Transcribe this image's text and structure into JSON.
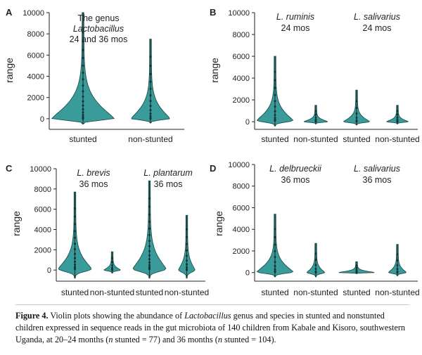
{
  "figure": {
    "caption_label": "Figure 4.",
    "caption_part1": "Violin plots showing the abundance of ",
    "caption_genus": "Lactobacillus",
    "caption_part2": " genus and species in stunted and nonstunted children expressed in sequence reads in the gut microbiota of 140 children from Kabale and Kisoro, southwestern Uganda, at 20–24 months (",
    "caption_n1": "n",
    "caption_part3": " stunted = 77) and 36 months (",
    "caption_n2": "n",
    "caption_part4": " stunted = 104)."
  },
  "colors": {
    "violin_fill": "#3a9c9a",
    "violin_stroke": "#1e4f4e",
    "axis": "#222222"
  },
  "chart_data": [
    {
      "panel": "A",
      "type": "violin",
      "ylabel": "range",
      "ylim": [
        -1000,
        10000
      ],
      "yticks": [
        0,
        2000,
        4000,
        6000,
        8000,
        10000
      ],
      "title_lines": [
        {
          "text": "The genus",
          "italic": false
        },
        {
          "text": "Lactobacillus",
          "italic": true
        },
        {
          "text": "24 and 36 mos",
          "italic": false
        }
      ],
      "categories": [
        "stunted",
        "non-stunted"
      ],
      "violins": [
        {
          "name": "stunted",
          "min": -500,
          "max": 10000,
          "peak": 0,
          "width": 0.9
        },
        {
          "name": "non-stunted",
          "min": -400,
          "max": 7500,
          "peak": 0,
          "width": 0.55
        }
      ]
    },
    {
      "panel": "B",
      "type": "violin",
      "ylabel": "range",
      "ylim": [
        -700,
        10000
      ],
      "yticks": [
        0,
        2000,
        4000,
        6000,
        8000,
        10000
      ],
      "titles": [
        {
          "species": "L. ruminis",
          "age": "24 mos"
        },
        {
          "species": "L. salivarius",
          "age": "24 mos"
        }
      ],
      "categories": [
        "stunted",
        "non-stunted",
        "stunted",
        "non-stunted"
      ],
      "violins": [
        {
          "name": "stunted",
          "min": -400,
          "max": 6000,
          "peak": 100,
          "width": 0.85
        },
        {
          "name": "non-stunted",
          "min": -200,
          "max": 1500,
          "peak": 0,
          "width": 0.55
        },
        {
          "name": "stunted",
          "min": -300,
          "max": 2900,
          "peak": 0,
          "width": 0.6
        },
        {
          "name": "non-stunted",
          "min": -200,
          "max": 1500,
          "peak": 0,
          "width": 0.5
        }
      ]
    },
    {
      "panel": "C",
      "type": "violin",
      "ylabel": "range",
      "ylim": [
        -1100,
        10000
      ],
      "yticks": [
        0,
        2000,
        4000,
        6000,
        8000,
        10000
      ],
      "titles": [
        {
          "species": "L.  brevis",
          "age": "36 mos"
        },
        {
          "species": "L. plantarum",
          "age": "36 mos"
        }
      ],
      "categories": [
        "stunted",
        "non-stunted",
        "stunted",
        "non-stunted"
      ],
      "violins": [
        {
          "name": "stunted",
          "min": -800,
          "max": 7700,
          "peak": 100,
          "width": 0.85
        },
        {
          "name": "non-stunted",
          "min": -300,
          "max": 1800,
          "peak": 0,
          "width": 0.4
        },
        {
          "name": "stunted",
          "min": -800,
          "max": 8800,
          "peak": 100,
          "width": 0.85
        },
        {
          "name": "non-stunted",
          "min": -800,
          "max": 5400,
          "peak": 0,
          "width": 0.4
        }
      ]
    },
    {
      "panel": "D",
      "type": "violin",
      "ylabel": "range",
      "ylim": [
        -800,
        10000
      ],
      "yticks": [
        0,
        2000,
        4000,
        6000,
        8000,
        10000
      ],
      "titles": [
        {
          "species": "L. delbrueckii",
          "age": "36 mos"
        },
        {
          "species": "L. salivarius",
          "age": "36 mos"
        }
      ],
      "categories": [
        "stunted",
        "non-stunted",
        "stunted",
        "non-stunted"
      ],
      "violins": [
        {
          "name": "stunted",
          "min": -400,
          "max": 5400,
          "peak": 50,
          "width": 0.85
        },
        {
          "name": "non-stunted",
          "min": -400,
          "max": 2700,
          "peak": 0,
          "width": 0.4
        },
        {
          "name": "stunted",
          "min": -100,
          "max": 1000,
          "peak": 0,
          "width": 0.85
        },
        {
          "name": "non-stunted",
          "min": -300,
          "max": 2600,
          "peak": 0,
          "width": 0.4
        }
      ]
    }
  ]
}
